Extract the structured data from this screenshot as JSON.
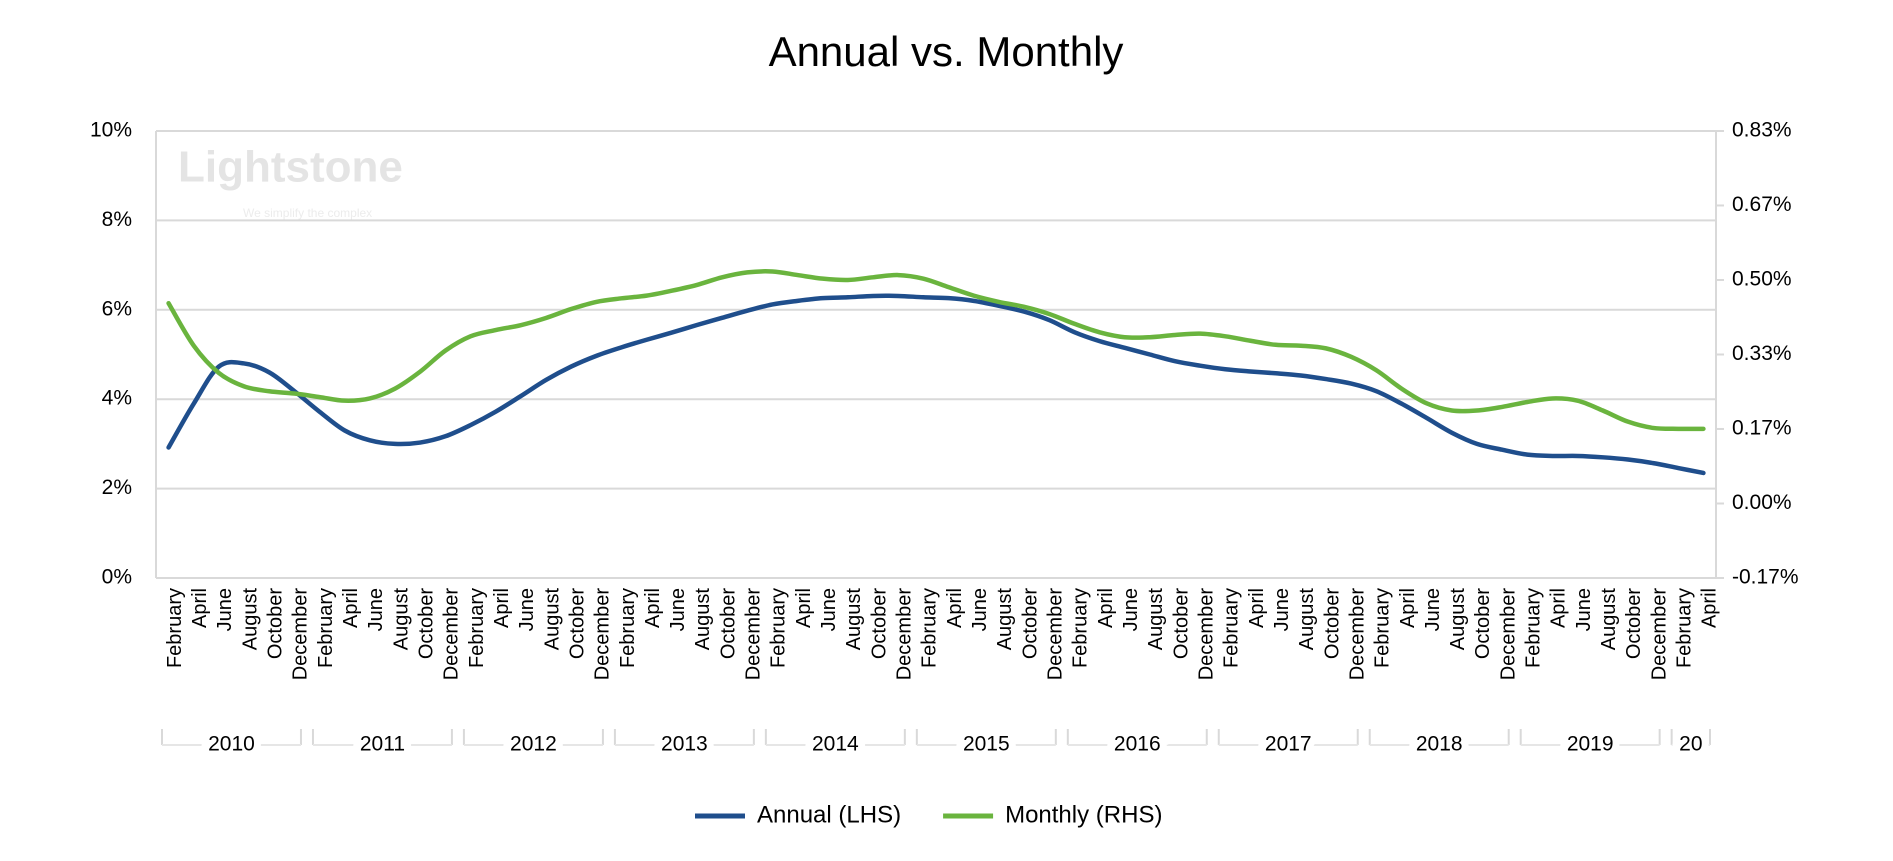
{
  "chart_data": {
    "type": "line",
    "title": "Annual vs. Monthly",
    "watermark": {
      "name": "Lightstone",
      "tagline": "We simplify the complex"
    },
    "categories": [
      "February",
      "April",
      "June",
      "August",
      "October",
      "December",
      "February",
      "April",
      "June",
      "August",
      "October",
      "December",
      "February",
      "April",
      "June",
      "August",
      "October",
      "December",
      "February",
      "April",
      "June",
      "August",
      "October",
      "December",
      "February",
      "April",
      "June",
      "August",
      "October",
      "December",
      "February",
      "April",
      "June",
      "August",
      "October",
      "December",
      "February",
      "April",
      "June",
      "August",
      "October",
      "December",
      "February",
      "April",
      "June",
      "August",
      "October",
      "December",
      "February",
      "April",
      "June",
      "August",
      "October",
      "December",
      "February",
      "April",
      "June",
      "August",
      "October",
      "December",
      "February",
      "April"
    ],
    "x_groups": [
      {
        "label": "2010",
        "span": 6
      },
      {
        "label": "2011",
        "span": 6
      },
      {
        "label": "2012",
        "span": 6
      },
      {
        "label": "2013",
        "span": 6
      },
      {
        "label": "2014",
        "span": 6
      },
      {
        "label": "2015",
        "span": 6
      },
      {
        "label": "2016",
        "span": 6
      },
      {
        "label": "2017",
        "span": 6
      },
      {
        "label": "2018",
        "span": 6
      },
      {
        "label": "2019",
        "span": 6
      },
      {
        "label": "20",
        "span": 2
      }
    ],
    "series": [
      {
        "name": "Annual (LHS)",
        "color": "#1f4e8c",
        "axis": "y",
        "values": [
          2.92,
          3.9,
          4.73,
          4.8,
          4.6,
          4.18,
          3.72,
          3.3,
          3.08,
          3.0,
          3.03,
          3.17,
          3.42,
          3.72,
          4.07,
          4.43,
          4.73,
          4.97,
          5.16,
          5.33,
          5.49,
          5.66,
          5.82,
          5.98,
          6.12,
          6.2,
          6.26,
          6.28,
          6.31,
          6.31,
          6.28,
          6.26,
          6.2,
          6.09,
          5.96,
          5.77,
          5.5,
          5.3,
          5.15,
          5.0,
          4.85,
          4.75,
          4.67,
          4.62,
          4.58,
          4.53,
          4.45,
          4.35,
          4.18,
          3.9,
          3.58,
          3.25,
          3.0,
          2.87,
          2.76,
          2.73,
          2.73,
          2.7,
          2.65,
          2.57,
          2.46,
          2.35
        ]
      },
      {
        "name": "Monthly (RHS)",
        "color": "#6ab43e",
        "axis": "y2",
        "values": [
          0.448,
          0.353,
          0.292,
          0.262,
          0.251,
          0.246,
          0.238,
          0.23,
          0.235,
          0.257,
          0.295,
          0.342,
          0.374,
          0.388,
          0.399,
          0.415,
          0.435,
          0.451,
          0.459,
          0.465,
          0.476,
          0.489,
          0.506,
          0.517,
          0.519,
          0.511,
          0.503,
          0.5,
          0.506,
          0.511,
          0.503,
          0.484,
          0.465,
          0.451,
          0.44,
          0.424,
          0.402,
          0.383,
          0.372,
          0.372,
          0.377,
          0.38,
          0.374,
          0.364,
          0.355,
          0.353,
          0.347,
          0.328,
          0.298,
          0.257,
          0.224,
          0.208,
          0.208,
          0.216,
          0.227,
          0.235,
          0.23,
          0.208,
          0.183,
          0.169,
          0.167,
          0.167
        ]
      }
    ],
    "ylim": [
      0,
      10
    ],
    "yticks": [
      {
        "value": 0,
        "label": "0%"
      },
      {
        "value": 2,
        "label": "2%"
      },
      {
        "value": 4,
        "label": "4%"
      },
      {
        "value": 6,
        "label": "6%"
      },
      {
        "value": 8,
        "label": "8%"
      },
      {
        "value": 10,
        "label": "10%"
      }
    ],
    "y2lim": [
      -0.1667,
      0.8333
    ],
    "y2ticks": [
      {
        "value": -0.1667,
        "label": "-0.17%"
      },
      {
        "value": 0,
        "label": "0.00%"
      },
      {
        "value": 0.1667,
        "label": "0.17%"
      },
      {
        "value": 0.3333,
        "label": "0.33%"
      },
      {
        "value": 0.5,
        "label": "0.50%"
      },
      {
        "value": 0.6667,
        "label": "0.67%"
      },
      {
        "value": 0.8333,
        "label": "0.83%"
      }
    ],
    "grid": true,
    "smooth": true,
    "legend": "bottom"
  }
}
